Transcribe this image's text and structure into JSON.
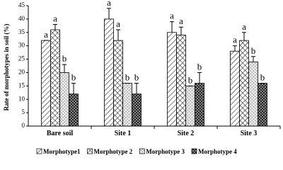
{
  "chart_data": {
    "type": "bar",
    "y_label": "Rate of morphotypes in soil (%)",
    "categories": [
      "Bare soil",
      "Site 1",
      "Site 2",
      "Site 3"
    ],
    "series": [
      {
        "name": "Morphotype1",
        "color": "#000000",
        "values": [
          32,
          40,
          35,
          28
        ],
        "errors": [
          0,
          4,
          4,
          2
        ],
        "value_labels": [
          "a",
          "a",
          "a",
          "a"
        ]
      },
      {
        "name": "Morphotype 2",
        "color": "#000000",
        "values": [
          36,
          32,
          34,
          32
        ],
        "errors": [
          2,
          4,
          3,
          3
        ],
        "value_labels": [
          "a",
          "a",
          "a",
          "a"
        ]
      },
      {
        "name": "Morphotype 3",
        "color": "#000000",
        "values": [
          20,
          16,
          15,
          24
        ],
        "errors": [
          3,
          0,
          0,
          2
        ],
        "value_labels": [
          "b",
          "b",
          "b",
          "b"
        ]
      },
      {
        "name": "Morphotype 4",
        "color": "#000000",
        "values": [
          12,
          12,
          16,
          16
        ],
        "errors": [
          4,
          4,
          4,
          0
        ],
        "value_labels": [
          "b",
          "b",
          "b",
          "b"
        ]
      }
    ],
    "ylim": [
      0,
      45
    ],
    "yticks": [
      0,
      5,
      10,
      15,
      20,
      25,
      30,
      35,
      40,
      45
    ]
  }
}
